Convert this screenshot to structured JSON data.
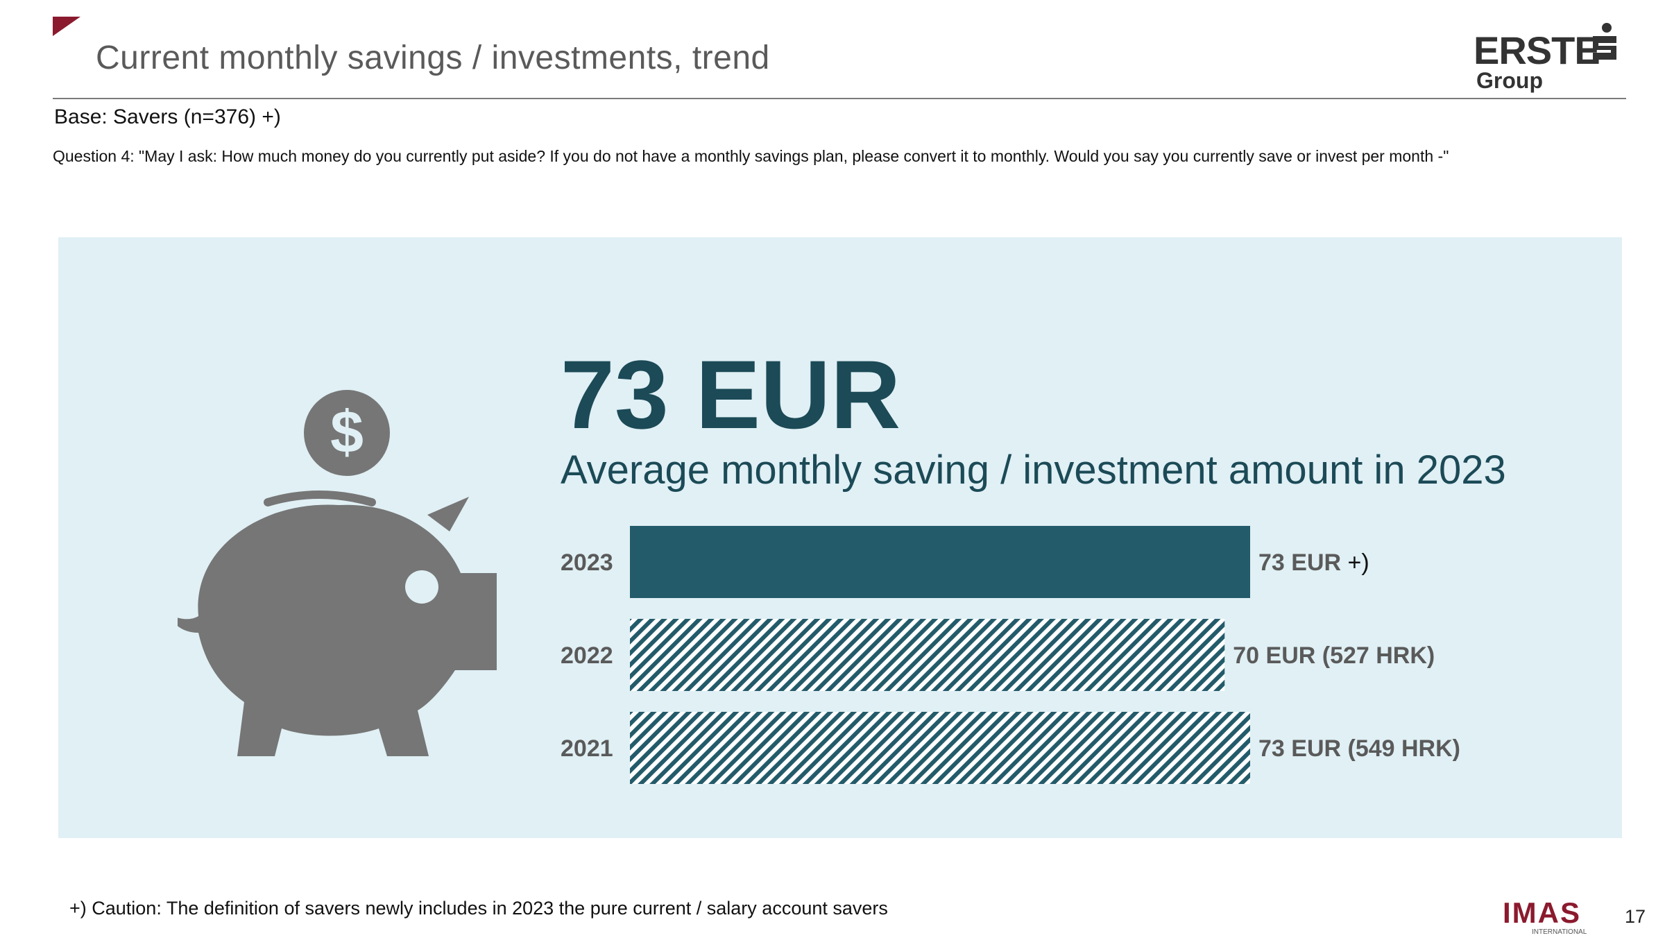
{
  "slide": {
    "title": "Current monthly savings / investments, trend",
    "base": "Base: Savers (n=376) +)",
    "question": "Question 4: \"May I ask: How much money do you currently put aside? If you do not have a monthly savings plan, please convert it to monthly. Would you say you currently save or invest per month -\"",
    "footnote": "+) Caution: The definition of savers newly includes in 2023 the pure current / salary account savers",
    "page_number": "17"
  },
  "logos": {
    "erste_word": "ERSTE",
    "erste_group": "Group",
    "imas_word": "IMAS",
    "imas_sub": "INTERNATIONAL"
  },
  "highlight": {
    "value": "73 EUR",
    "label": "Average monthly saving / investment amount in 2023"
  },
  "colors": {
    "accent": "#8b1a2e",
    "bar": "#235b6a",
    "panel": "#e0f0f5",
    "text_dark": "#1c4a57",
    "icon": "#767676"
  },
  "chart_data": {
    "type": "bar",
    "orientation": "horizontal",
    "categories": [
      "2023",
      "2022",
      "2021"
    ],
    "values": [
      73,
      70,
      73
    ],
    "unit": "EUR",
    "data_labels": [
      "73 EUR",
      "70 EUR (527 HRK)",
      "73 EUR (549 HRK)"
    ],
    "label_notes": [
      "+)",
      "",
      ""
    ],
    "styles": [
      "solid",
      "hatched",
      "hatched"
    ],
    "xlim": [
      0,
      73
    ],
    "grid": false,
    "legend": "none"
  }
}
